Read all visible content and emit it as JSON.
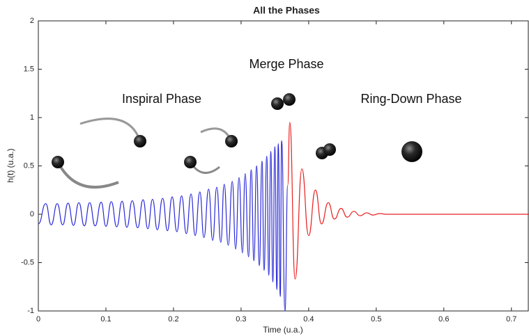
{
  "chart_data": {
    "type": "line",
    "title": "All the Phases",
    "x_label": "Time (u.a.)",
    "y_label": "h(t) (u.a.)",
    "annotations": [
      "Inspiral Phase",
      "Merge Phase",
      "Ring-Down Phase"
    ],
    "xlim": [
      0,
      0.725
    ],
    "xticks": [
      0,
      0.1,
      0.2,
      0.3,
      0.4,
      0.5,
      0.6,
      0.7
    ],
    "ylim": [
      -1,
      2
    ],
    "yticks": [
      -1,
      -0.5,
      0,
      0.5,
      1,
      1.5,
      2
    ],
    "grid": false,
    "series": [
      {
        "color": "#2a2ad8",
        "x": [
          0,
          0.011,
          0.019,
          0.028,
          0.036,
          0.044,
          0.052,
          0.06,
          0.068,
          0.076,
          0.084,
          0.093,
          0.1,
          0.108,
          0.116,
          0.124,
          0.131,
          0.139,
          0.147,
          0.155,
          0.162,
          0.169,
          0.176,
          0.184,
          0.191,
          0.198,
          0.205,
          0.212,
          0.219,
          0.226,
          0.232,
          0.239,
          0.245,
          0.252,
          0.258,
          0.264,
          0.27,
          0.275,
          0.281,
          0.287,
          0.292,
          0.297,
          0.302,
          0.306,
          0.311,
          0.315,
          0.319,
          0.323,
          0.327,
          0.331,
          0.334,
          0.338,
          0.341,
          0.344,
          0.347,
          0.35,
          0.353,
          0.355,
          0.358,
          0.36,
          0.365,
          0.369
        ],
        "values": [
          -0.1,
          0.11,
          -0.11,
          0.11,
          -0.11,
          0.115,
          -0.115,
          0.12,
          -0.12,
          0.12,
          -0.12,
          0.125,
          -0.125,
          0.13,
          -0.13,
          0.135,
          -0.135,
          0.14,
          -0.14,
          0.15,
          -0.15,
          0.155,
          -0.16,
          0.165,
          -0.17,
          0.18,
          -0.18,
          0.19,
          -0.2,
          0.21,
          -0.22,
          0.23,
          -0.24,
          0.26,
          -0.27,
          0.28,
          -0.29,
          0.31,
          -0.32,
          0.34,
          -0.36,
          0.38,
          -0.4,
          0.42,
          -0.44,
          0.46,
          -0.48,
          0.5,
          -0.53,
          0.55,
          -0.58,
          0.6,
          -0.63,
          0.65,
          -0.7,
          0.7,
          -0.78,
          0.73,
          -0.85,
          0.76,
          -1.0,
          0.3
        ]
      },
      {
        "color": "#e82020",
        "x": [
          0.369,
          0.372,
          0.38,
          0.39,
          0.4,
          0.41,
          0.419,
          0.429,
          0.438,
          0.448,
          0.457,
          0.467,
          0.476,
          0.486,
          0.495,
          0.505,
          0.515,
          0.6,
          0.73
        ],
        "values": [
          0.3,
          0.95,
          -0.67,
          0.47,
          -0.22,
          0.25,
          -0.1,
          0.12,
          -0.05,
          0.06,
          -0.03,
          0.03,
          -0.015,
          0.015,
          -0.008,
          0.007,
          0,
          0,
          0
        ]
      }
    ]
  }
}
